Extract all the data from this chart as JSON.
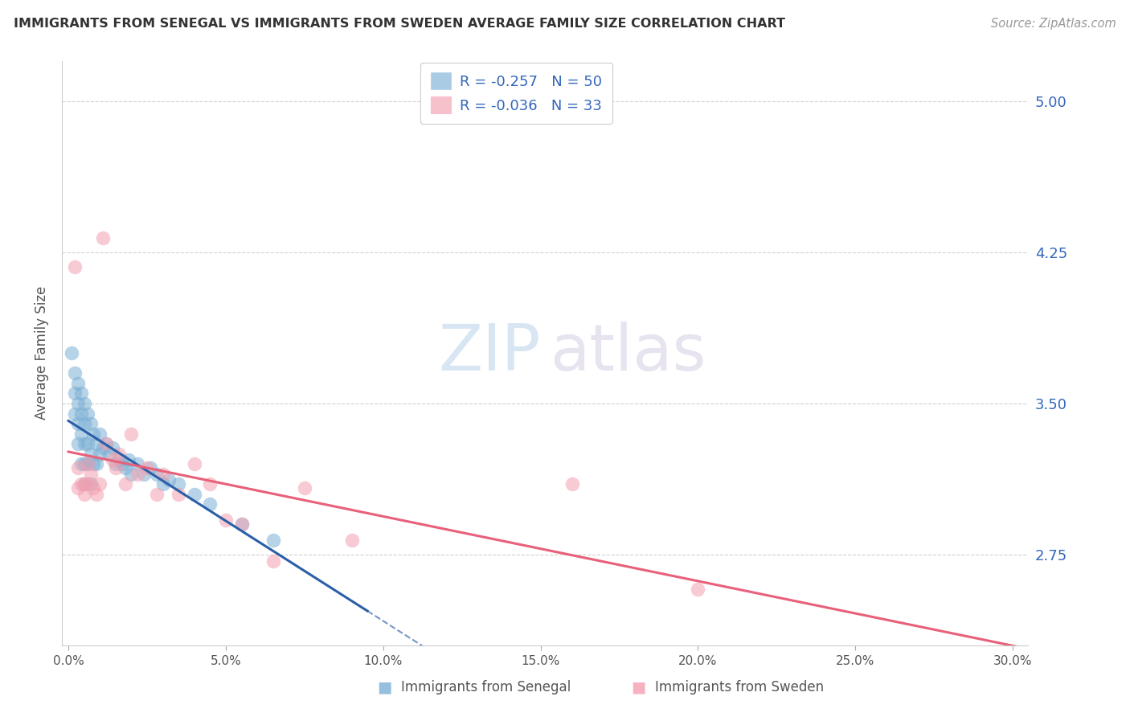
{
  "title": "IMMIGRANTS FROM SENEGAL VS IMMIGRANTS FROM SWEDEN AVERAGE FAMILY SIZE CORRELATION CHART",
  "source": "Source: ZipAtlas.com",
  "ylabel": "Average Family Size",
  "yticks": [
    2.75,
    3.5,
    4.25,
    5.0
  ],
  "ymin": 2.3,
  "ymax": 5.2,
  "xmin": -0.002,
  "xmax": 0.305,
  "xticks": [
    0.0,
    0.05,
    0.1,
    0.15,
    0.2,
    0.25,
    0.3
  ],
  "xticklabels": [
    "0.0%",
    "5.0%",
    "10.0%",
    "15.0%",
    "20.0%",
    "25.0%",
    "30.0%"
  ],
  "senegal_R": -0.257,
  "senegal_N": 50,
  "sweden_R": -0.036,
  "sweden_N": 33,
  "senegal_color": "#7BAFD4",
  "sweden_color": "#F4A0B0",
  "senegal_line_color": "#2B5FA8",
  "sweden_line_color": "#E8607A",
  "senegal_line_solid_end": 0.095,
  "watermark_zip": "ZIP",
  "watermark_atlas": "atlas",
  "senegal_x": [
    0.001,
    0.002,
    0.002,
    0.002,
    0.003,
    0.003,
    0.003,
    0.003,
    0.004,
    0.004,
    0.004,
    0.004,
    0.005,
    0.005,
    0.005,
    0.005,
    0.005,
    0.006,
    0.006,
    0.006,
    0.007,
    0.007,
    0.007,
    0.008,
    0.008,
    0.009,
    0.009,
    0.01,
    0.01,
    0.011,
    0.012,
    0.013,
    0.014,
    0.015,
    0.016,
    0.017,
    0.018,
    0.019,
    0.02,
    0.022,
    0.024,
    0.026,
    0.028,
    0.03,
    0.032,
    0.035,
    0.04,
    0.045,
    0.055,
    0.065
  ],
  "senegal_y": [
    3.75,
    3.65,
    3.55,
    3.45,
    3.6,
    3.5,
    3.4,
    3.3,
    3.55,
    3.45,
    3.35,
    3.2,
    3.5,
    3.4,
    3.3,
    3.2,
    3.1,
    3.45,
    3.3,
    3.2,
    3.4,
    3.25,
    3.1,
    3.35,
    3.2,
    3.3,
    3.2,
    3.35,
    3.25,
    3.28,
    3.3,
    3.25,
    3.28,
    3.2,
    3.22,
    3.2,
    3.18,
    3.22,
    3.15,
    3.2,
    3.15,
    3.18,
    3.15,
    3.1,
    3.12,
    3.1,
    3.05,
    3.0,
    2.9,
    2.82
  ],
  "sweden_x": [
    0.002,
    0.003,
    0.003,
    0.004,
    0.005,
    0.005,
    0.006,
    0.006,
    0.007,
    0.008,
    0.009,
    0.01,
    0.011,
    0.012,
    0.014,
    0.015,
    0.016,
    0.018,
    0.02,
    0.022,
    0.025,
    0.028,
    0.03,
    0.035,
    0.04,
    0.045,
    0.05,
    0.055,
    0.065,
    0.075,
    0.09,
    0.16,
    0.2
  ],
  "sweden_y": [
    4.18,
    3.18,
    3.08,
    3.1,
    3.1,
    3.05,
    3.2,
    3.1,
    3.15,
    3.08,
    3.05,
    3.1,
    4.32,
    3.3,
    3.22,
    3.18,
    3.25,
    3.1,
    3.35,
    3.15,
    3.18,
    3.05,
    3.15,
    3.05,
    3.2,
    3.1,
    2.92,
    2.9,
    2.72,
    3.08,
    2.82,
    3.1,
    2.58
  ]
}
